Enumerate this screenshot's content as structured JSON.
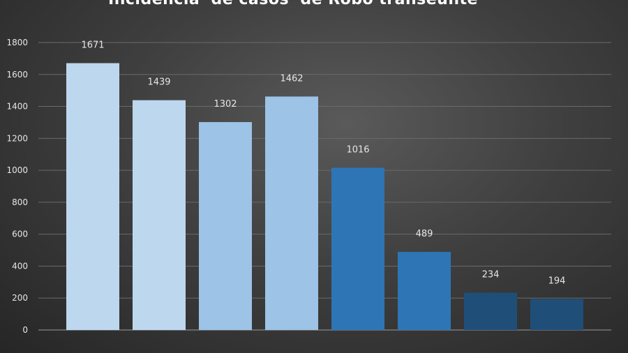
{
  "chart_data": {
    "type": "bar",
    "title": "Incidencia  de casos  de Robo transeúnte",
    "xlabel": "",
    "ylabel": "",
    "ylim": [
      0,
      1800
    ],
    "yticks": [
      0,
      200,
      400,
      600,
      800,
      1000,
      1200,
      1400,
      1600,
      1800
    ],
    "grid": true,
    "legend": "none",
    "values": [
      1671,
      1439,
      1302,
      1462,
      1016,
      489,
      234,
      194
    ],
    "bar_colors": [
      "#bdd7ee",
      "#bdd7ee",
      "#9dc3e6",
      "#9dc3e6",
      "#2e75b6",
      "#2e75b6",
      "#1f4e79",
      "#1f4e79"
    ]
  }
}
